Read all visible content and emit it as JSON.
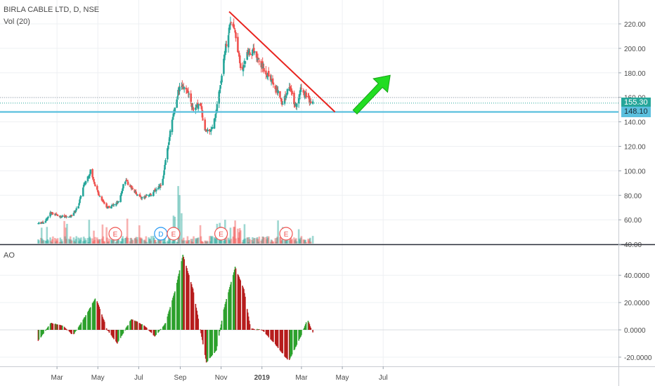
{
  "header": {
    "symbol_line": "BIRLA CABLE LTD, D, NSE",
    "volume_label": "Vol (20)"
  },
  "indicator": {
    "label": "AO"
  },
  "price_badges": {
    "last": "155.30",
    "level": "148.10",
    "last_color": "#26a69a",
    "level_color": "#5bc0de"
  },
  "colors": {
    "up": "#26a69a",
    "down": "#ef5350",
    "ao_up": "#2ca02c",
    "ao_down": "#b71c1c",
    "trendline": "#e8231e",
    "support": "#5bc0de",
    "arrow": "#22dd22",
    "event_marker": "#ef5350",
    "dividend_marker": "#2196f3"
  },
  "chart_data": [
    {
      "type": "candlestick",
      "title": "BIRLA CABLE LTD, D, NSE",
      "ylim": [
        40,
        230
      ],
      "y_ticks": [
        "220.00",
        "200.00",
        "180.00",
        "160.00",
        "140.00",
        "120.00",
        "100.00",
        "80.00",
        "60.00",
        "40.00"
      ],
      "x_ticks": [
        "Mar",
        "May",
        "Jul",
        "Sep",
        "Nov",
        "2019",
        "Mar",
        "May",
        "Jul"
      ],
      "price_path": [
        [
          "2018-02-01",
          57
        ],
        [
          "2018-02-10",
          58
        ],
        [
          "2018-02-20",
          66
        ],
        [
          "2018-03-05",
          63
        ],
        [
          "2018-03-20",
          62
        ],
        [
          "2018-04-01",
          70
        ],
        [
          "2018-04-10",
          88
        ],
        [
          "2018-04-20",
          100
        ],
        [
          "2018-05-01",
          82
        ],
        [
          "2018-05-15",
          70
        ],
        [
          "2018-06-01",
          74
        ],
        [
          "2018-06-10",
          93
        ],
        [
          "2018-06-25",
          83
        ],
        [
          "2018-07-05",
          78
        ],
        [
          "2018-07-20",
          81
        ],
        [
          "2018-08-05",
          90
        ],
        [
          "2018-08-15",
          125
        ],
        [
          "2018-08-25",
          155
        ],
        [
          "2018-09-01",
          172
        ],
        [
          "2018-09-10",
          168
        ],
        [
          "2018-09-20",
          150
        ],
        [
          "2018-10-01",
          155
        ],
        [
          "2018-10-08",
          132
        ],
        [
          "2018-10-20",
          135
        ],
        [
          "2018-10-28",
          160
        ],
        [
          "2018-11-05",
          192
        ],
        [
          "2018-11-15",
          222
        ],
        [
          "2018-11-22",
          215
        ],
        [
          "2018-12-01",
          180
        ],
        [
          "2018-12-10",
          195
        ],
        [
          "2018-12-20",
          198
        ],
        [
          "2019-01-05",
          182
        ],
        [
          "2019-01-20",
          170
        ],
        [
          "2019-02-01",
          155
        ],
        [
          "2019-02-10",
          170
        ],
        [
          "2019-02-20",
          153
        ],
        [
          "2019-03-01",
          168
        ],
        [
          "2019-03-10",
          160
        ],
        [
          "2019-03-18",
          155
        ]
      ],
      "last_price": 155.3,
      "support_level": 148.1,
      "trendline": [
        [
          "2018-11-13",
          230
        ],
        [
          "2019-04-20",
          148.1
        ]
      ],
      "arrow": {
        "from": [
          "2019-03-18",
          148
        ],
        "to": [
          "2019-04-20",
          178
        ]
      },
      "events": [
        {
          "label": "E",
          "date": "2018-05-27"
        },
        {
          "label": "D",
          "date": "2018-08-03"
        },
        {
          "label": "E",
          "date": "2018-08-22"
        },
        {
          "label": "E",
          "date": "2018-11-01"
        },
        {
          "label": "E",
          "date": "2019-02-06"
        }
      ],
      "volume_series": "Vol (20)"
    },
    {
      "type": "bar",
      "title": "AO",
      "ylim": [
        -25,
        55
      ],
      "y_ticks": [
        "40.0000",
        "20.0000",
        "0.0000",
        "-20.0000"
      ],
      "ao_path": [
        [
          "2018-02-01",
          -8
        ],
        [
          "2018-02-20",
          5
        ],
        [
          "2018-03-10",
          3
        ],
        [
          "2018-03-25",
          -4
        ],
        [
          "2018-04-15",
          12
        ],
        [
          "2018-04-28",
          24
        ],
        [
          "2018-05-15",
          0
        ],
        [
          "2018-05-30",
          -10
        ],
        [
          "2018-06-20",
          8
        ],
        [
          "2018-07-10",
          3
        ],
        [
          "2018-07-25",
          -5
        ],
        [
          "2018-08-10",
          5
        ],
        [
          "2018-08-25",
          30
        ],
        [
          "2018-09-05",
          55
        ],
        [
          "2018-09-20",
          30
        ],
        [
          "2018-10-10",
          -24
        ],
        [
          "2018-10-25",
          -15
        ],
        [
          "2018-11-05",
          15
        ],
        [
          "2018-11-22",
          46
        ],
        [
          "2018-12-05",
          30
        ],
        [
          "2018-12-15",
          1
        ],
        [
          "2019-01-01",
          0
        ],
        [
          "2019-01-20",
          -10
        ],
        [
          "2019-02-10",
          -23
        ],
        [
          "2019-02-28",
          -5
        ],
        [
          "2019-03-10",
          8
        ],
        [
          "2019-03-18",
          -2
        ]
      ]
    }
  ]
}
